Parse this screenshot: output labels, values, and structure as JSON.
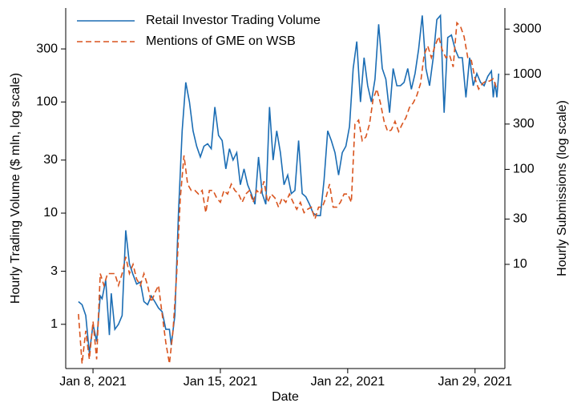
{
  "chart_data": {
    "type": "line",
    "xlabel": "Date",
    "ylabel": "Hourly Trading Volume ($ mln, log scale)",
    "y2label": "Hourly Submissions (log scale)",
    "log_scale": true,
    "grid": false,
    "legend": "upper left",
    "xlim": [
      6.5,
      30.64
    ],
    "xticks": [
      {
        "value": 8,
        "label": "Jan 8, 2021"
      },
      {
        "value": 15,
        "label": "Jan 15, 2021"
      },
      {
        "value": 22,
        "label": "Jan 22, 2021"
      },
      {
        "value": 29,
        "label": "Jan 29, 2021"
      }
    ],
    "ylim": [
      0.4,
      700
    ],
    "yticks": [
      1,
      3,
      10,
      30,
      100,
      300
    ],
    "y2lim": [
      0.8,
      5000
    ],
    "y2ticks": [
      10,
      30,
      100,
      300,
      1000,
      3000
    ],
    "series": [
      {
        "name": "Retail Investor Trading Volume",
        "color": "#1b6db4",
        "style": "solid",
        "x": [
          7.2,
          7.4,
          7.6,
          7.8,
          8.0,
          8.2,
          8.4,
          8.5,
          8.7,
          8.9,
          9.0,
          9.2,
          9.4,
          9.6,
          9.8,
          10.0,
          10.2,
          10.4,
          10.6,
          10.8,
          11.0,
          11.2,
          11.4,
          11.6,
          11.8,
          12.0,
          12.2,
          12.3,
          12.5,
          12.7,
          12.9,
          13.1,
          13.3,
          13.5,
          13.7,
          13.9,
          14.1,
          14.3,
          14.5,
          14.7,
          14.9,
          15.1,
          15.3,
          15.5,
          15.7,
          15.9,
          16.1,
          16.3,
          16.5,
          16.7,
          16.9,
          17.1,
          17.3,
          17.5,
          17.7,
          17.9,
          18.1,
          18.3,
          18.5,
          18.7,
          18.9,
          19.1,
          19.3,
          19.5,
          19.7,
          19.9,
          20.1,
          20.3,
          20.5,
          20.7,
          20.9,
          21.1,
          21.3,
          21.5,
          21.7,
          21.9,
          22.1,
          22.3,
          22.5,
          22.7,
          22.9,
          23.1,
          23.3,
          23.5,
          23.7,
          23.9,
          24.1,
          24.3,
          24.5,
          24.7,
          24.9,
          25.1,
          25.3,
          25.5,
          25.7,
          25.9,
          26.1,
          26.3,
          26.5,
          26.7,
          26.9,
          27.1,
          27.3,
          27.5,
          27.7,
          27.9,
          28.1,
          28.3,
          28.5,
          28.7,
          28.9,
          29.1,
          29.3,
          29.5,
          29.7,
          29.9,
          30.0,
          30.1,
          30.2,
          30.3
        ],
        "values": [
          1.6,
          1.5,
          1.2,
          0.55,
          1.0,
          0.7,
          1.8,
          1.7,
          2.5,
          0.8,
          1.9,
          0.9,
          1.0,
          1.2,
          7.0,
          3.5,
          2.8,
          2.3,
          2.4,
          1.6,
          1.5,
          1.8,
          1.6,
          1.4,
          1.3,
          0.9,
          0.9,
          0.65,
          1.2,
          10,
          55,
          150,
          100,
          55,
          40,
          32,
          40,
          42,
          38,
          90,
          50,
          45,
          25,
          38,
          30,
          35,
          18,
          25,
          18,
          15,
          12,
          32,
          15,
          12,
          90,
          30,
          55,
          35,
          18,
          22,
          15,
          16,
          45,
          15,
          14,
          12,
          10,
          9.5,
          9.5,
          20,
          55,
          45,
          35,
          22,
          35,
          40,
          60,
          200,
          350,
          100,
          250,
          140,
          100,
          160,
          500,
          200,
          160,
          80,
          200,
          140,
          140,
          150,
          200,
          130,
          180,
          300,
          600,
          200,
          140,
          250,
          550,
          600,
          80,
          380,
          400,
          300,
          250,
          250,
          110,
          250,
          140,
          180,
          150,
          140,
          170,
          190,
          110,
          150,
          110,
          180
        ]
      },
      {
        "name": "Mentions of GME on WSB",
        "color": "#d9541e",
        "style": "dashed",
        "axis": "y2",
        "x": [
          7.2,
          7.4,
          7.6,
          7.8,
          8.0,
          8.2,
          8.4,
          8.6,
          8.8,
          9.0,
          9.2,
          9.4,
          9.6,
          9.8,
          10.0,
          10.2,
          10.4,
          10.6,
          10.8,
          11.0,
          11.2,
          11.4,
          11.6,
          11.8,
          12.0,
          12.2,
          12.4,
          12.6,
          12.8,
          13.0,
          13.2,
          13.4,
          13.6,
          13.8,
          14.0,
          14.2,
          14.4,
          14.6,
          14.8,
          15.0,
          15.2,
          15.4,
          15.6,
          15.8,
          16.0,
          16.2,
          16.4,
          16.6,
          16.8,
          17.0,
          17.2,
          17.4,
          17.6,
          17.8,
          18.0,
          18.2,
          18.4,
          18.6,
          18.8,
          19.0,
          19.2,
          19.4,
          19.6,
          19.8,
          20.0,
          20.2,
          20.4,
          20.6,
          20.8,
          21.0,
          21.2,
          21.4,
          21.6,
          21.8,
          22.0,
          22.2,
          22.4,
          22.6,
          22.8,
          23.0,
          23.2,
          23.4,
          23.6,
          23.8,
          24.0,
          24.2,
          24.4,
          24.6,
          24.8,
          25.0,
          25.2,
          25.4,
          25.6,
          25.8,
          26.0,
          26.2,
          26.4,
          26.6,
          26.8,
          27.0,
          27.2,
          27.4,
          27.6,
          27.8,
          28.0,
          28.2,
          28.4,
          28.6,
          28.8,
          29.0,
          29.2,
          29.4,
          29.6,
          29.8,
          30.0,
          30.2
        ],
        "values": [
          3,
          0.9,
          2,
          1,
          2.5,
          1,
          8,
          6,
          8,
          8,
          8,
          6,
          8,
          12,
          8,
          10,
          7,
          6,
          8,
          6,
          4,
          5,
          6,
          3,
          1.5,
          0.9,
          2,
          8,
          50,
          140,
          70,
          60,
          60,
          55,
          60,
          35,
          60,
          60,
          50,
          45,
          60,
          55,
          70,
          60,
          55,
          45,
          55,
          60,
          45,
          60,
          55,
          75,
          45,
          55,
          50,
          40,
          50,
          45,
          55,
          45,
          38,
          45,
          35,
          38,
          40,
          30,
          40,
          40,
          50,
          70,
          40,
          40,
          45,
          55,
          55,
          45,
          300,
          330,
          200,
          220,
          300,
          550,
          700,
          500,
          320,
          250,
          260,
          320,
          250,
          300,
          350,
          450,
          500,
          600,
          800,
          1600,
          2000,
          1500,
          2000,
          2500,
          1800,
          1500,
          1600,
          1200,
          3500,
          3200,
          2500,
          1500,
          1400,
          900,
          700,
          800,
          850,
          850,
          900,
          700
        ]
      }
    ]
  }
}
